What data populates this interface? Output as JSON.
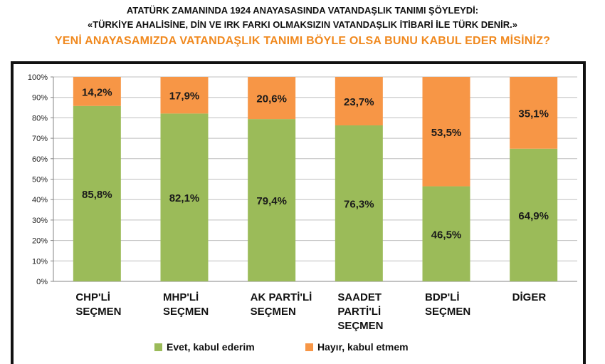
{
  "header": {
    "line1": "ATATÜRK ZAMANINDA 1924 ANAYASASINDA VATANDAŞLIK TANIMI ŞÖYLEYDİ:",
    "line2": "«TÜRKİYE AHALİSİNE, DİN VE IRK FARKI OLMAKSIZIN VATANDAŞLIK İTİBARİ İLE TÜRK DENİR.»",
    "line3": "YENİ ANAYASAMIZDA VATANDAŞLIK TANIMI BÖYLE OLSA BUNU KABUL EDER MİSİNİZ?"
  },
  "chart_data": {
    "type": "bar",
    "stacked": true,
    "percent": true,
    "categories": [
      [
        "CHP'Lİ",
        "SEÇMEN"
      ],
      [
        "MHP'Lİ",
        "SEÇMEN"
      ],
      [
        "AK PARTİ'Lİ",
        "SEÇMEN"
      ],
      [
        "SAADET",
        "PARTİ'Lİ",
        "SEÇMEN"
      ],
      [
        "BDP'Lİ",
        "SEÇMEN"
      ],
      [
        "DİGER"
      ]
    ],
    "series": [
      {
        "name": "Evet, kabul ederim",
        "values": [
          85.8,
          82.1,
          79.4,
          76.3,
          46.5,
          64.9
        ],
        "labels": [
          "85,8%",
          "82,1%",
          "79,4%",
          "76,3%",
          "46,5%",
          "64,9%"
        ],
        "color": "#9bbb59"
      },
      {
        "name": "Hayır, kabul etmem",
        "values": [
          14.2,
          17.9,
          20.6,
          23.7,
          53.5,
          35.1
        ],
        "labels": [
          "14,2%",
          "17,9%",
          "20,6%",
          "23,7%",
          "53,5%",
          "35,1%"
        ],
        "color": "#f79646"
      }
    ],
    "yticks": [
      "0%",
      "10%",
      "20%",
      "30%",
      "40%",
      "50%",
      "60%",
      "70%",
      "80%",
      "90%",
      "100%"
    ],
    "ylim": [
      0,
      100
    ],
    "grid": true,
    "legend_position": "bottom"
  }
}
